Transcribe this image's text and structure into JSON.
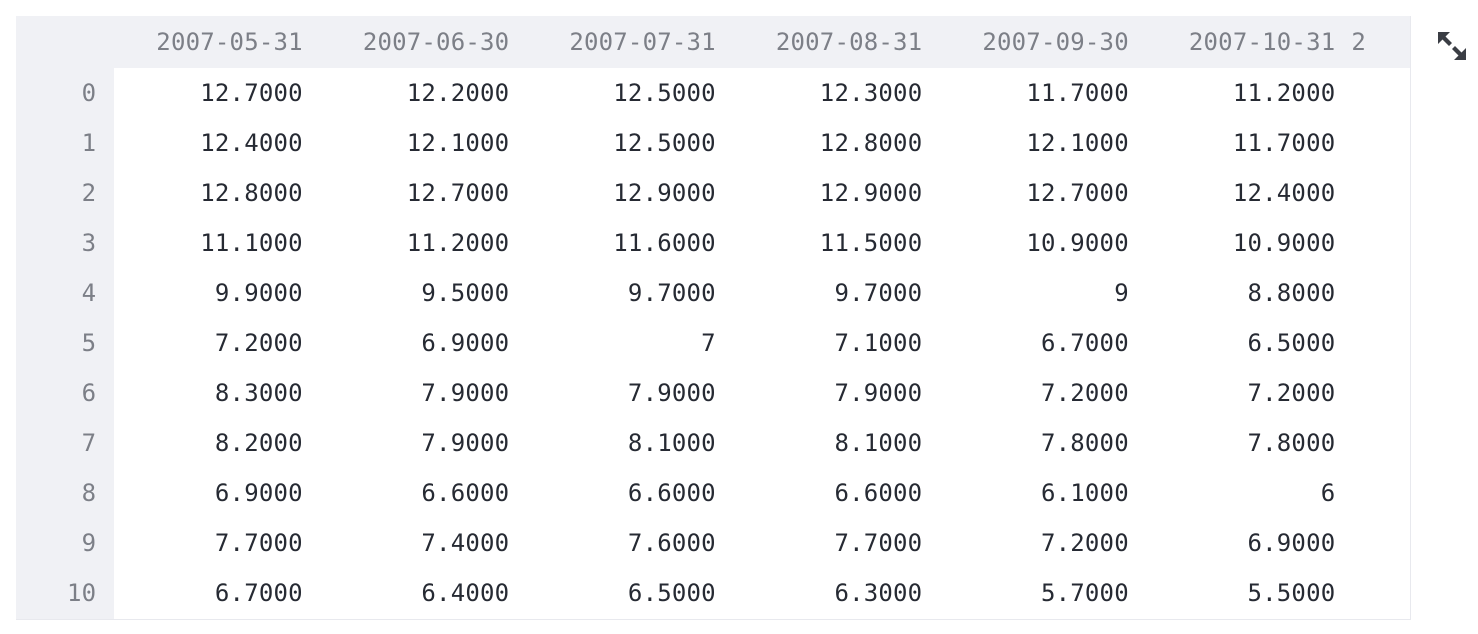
{
  "dataframe": {
    "columns": [
      "2007-05-31",
      "2007-06-30",
      "2007-07-31",
      "2007-08-31",
      "2007-09-30",
      "2007-10-31"
    ],
    "truncated_column_fragment": "2",
    "rows": [
      {
        "index": "0",
        "values": [
          "12.7000",
          "12.2000",
          "12.5000",
          "12.3000",
          "11.7000",
          "11.2000"
        ]
      },
      {
        "index": "1",
        "values": [
          "12.4000",
          "12.1000",
          "12.5000",
          "12.8000",
          "12.1000",
          "11.7000"
        ]
      },
      {
        "index": "2",
        "values": [
          "12.8000",
          "12.7000",
          "12.9000",
          "12.9000",
          "12.7000",
          "12.4000"
        ]
      },
      {
        "index": "3",
        "values": [
          "11.1000",
          "11.2000",
          "11.6000",
          "11.5000",
          "10.9000",
          "10.9000"
        ]
      },
      {
        "index": "4",
        "values": [
          "9.9000",
          "9.5000",
          "9.7000",
          "9.7000",
          "9",
          "8.8000"
        ]
      },
      {
        "index": "5",
        "values": [
          "7.2000",
          "6.9000",
          "7",
          "7.1000",
          "6.7000",
          "6.5000"
        ]
      },
      {
        "index": "6",
        "values": [
          "8.3000",
          "7.9000",
          "7.9000",
          "7.9000",
          "7.2000",
          "7.2000"
        ]
      },
      {
        "index": "7",
        "values": [
          "8.2000",
          "7.9000",
          "8.1000",
          "8.1000",
          "7.8000",
          "7.8000"
        ]
      },
      {
        "index": "8",
        "values": [
          "6.9000",
          "6.6000",
          "6.6000",
          "6.6000",
          "6.1000",
          "6"
        ]
      },
      {
        "index": "9",
        "values": [
          "7.7000",
          "7.4000",
          "7.6000",
          "7.7000",
          "7.2000",
          "6.9000"
        ]
      },
      {
        "index": "10",
        "values": [
          "6.7000",
          "6.4000",
          "6.5000",
          "6.3000",
          "5.7000",
          "5.5000"
        ]
      }
    ]
  },
  "toolbar": {
    "expand_icon": "expand-arrows-icon"
  },
  "colors": {
    "header_bg": "#f0f1f5",
    "header_text": "#7c7f87",
    "cell_text": "#262a33"
  }
}
